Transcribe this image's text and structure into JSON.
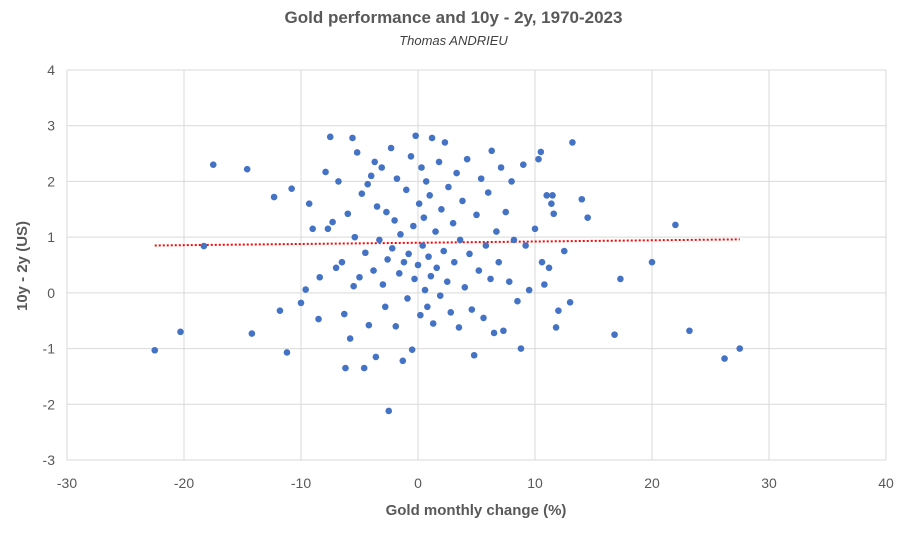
{
  "chart_data": {
    "type": "scatter",
    "title": "Gold performance and 10y - 2y, 1970-2023",
    "subtitle": "Thomas ANDRIEU",
    "xlabel": "Gold monthly change (%)",
    "ylabel": "10y - 2y  (US)",
    "xlim": [
      -30,
      40
    ],
    "ylim": [
      -3,
      4
    ],
    "x_ticks": [
      -30,
      -20,
      -10,
      0,
      10,
      20,
      30,
      40
    ],
    "y_ticks": [
      -3,
      -2,
      -1,
      0,
      1,
      2,
      3,
      4
    ],
    "grid": true,
    "legend": "none",
    "colors": {
      "points": "#4472C4",
      "trendline": "#FF0000",
      "grid": "#D9D9D9",
      "text": "#595959"
    },
    "trendline": {
      "style": "dotted",
      "x": [
        -22.5,
        27.5
      ],
      "y": [
        0.85,
        0.96
      ]
    },
    "series": [
      {
        "values": [
          [
            -22.5,
            -1.03
          ],
          [
            -20.3,
            -0.7
          ],
          [
            -18.3,
            0.84
          ],
          [
            -17.5,
            2.3
          ],
          [
            -14.6,
            2.22
          ],
          [
            -14.2,
            -0.73
          ],
          [
            -12.3,
            1.72
          ],
          [
            -11.8,
            -0.32
          ],
          [
            -11.2,
            -1.07
          ],
          [
            -10.8,
            1.87
          ],
          [
            -10.0,
            -0.18
          ],
          [
            -9.6,
            0.06
          ],
          [
            -9.3,
            1.6
          ],
          [
            -9.0,
            1.15
          ],
          [
            -8.5,
            -0.47
          ],
          [
            -8.4,
            0.28
          ],
          [
            -7.9,
            2.17
          ],
          [
            -7.7,
            1.15
          ],
          [
            -7.5,
            2.8
          ],
          [
            -7.3,
            1.27
          ],
          [
            -7.0,
            0.45
          ],
          [
            -6.8,
            2.0
          ],
          [
            -6.5,
            0.55
          ],
          [
            -6.3,
            -0.38
          ],
          [
            -6.2,
            -1.35
          ],
          [
            -6.0,
            1.42
          ],
          [
            -5.8,
            -0.82
          ],
          [
            -5.6,
            2.78
          ],
          [
            -5.5,
            0.12
          ],
          [
            -5.4,
            1.0
          ],
          [
            -5.2,
            2.52
          ],
          [
            -5.0,
            0.28
          ],
          [
            -4.8,
            1.78
          ],
          [
            -4.6,
            -1.35
          ],
          [
            -4.5,
            0.72
          ],
          [
            -4.3,
            1.95
          ],
          [
            -4.2,
            -0.58
          ],
          [
            -4.0,
            2.1
          ],
          [
            -3.8,
            0.4
          ],
          [
            -3.7,
            2.35
          ],
          [
            -3.6,
            -1.15
          ],
          [
            -3.5,
            1.55
          ],
          [
            -3.3,
            0.95
          ],
          [
            -3.1,
            2.25
          ],
          [
            -3.0,
            0.15
          ],
          [
            -2.8,
            -0.25
          ],
          [
            -2.7,
            1.45
          ],
          [
            -2.6,
            0.6
          ],
          [
            -2.5,
            -2.12
          ],
          [
            -2.3,
            2.6
          ],
          [
            -2.2,
            0.8
          ],
          [
            -2.0,
            1.3
          ],
          [
            -1.9,
            -0.6
          ],
          [
            -1.8,
            2.05
          ],
          [
            -1.6,
            0.35
          ],
          [
            -1.5,
            1.05
          ],
          [
            -1.3,
            -1.22
          ],
          [
            -1.2,
            0.55
          ],
          [
            -1.0,
            1.85
          ],
          [
            -0.9,
            -0.1
          ],
          [
            -0.8,
            0.7
          ],
          [
            -0.6,
            2.45
          ],
          [
            -0.5,
            -1.02
          ],
          [
            -0.4,
            1.2
          ],
          [
            -0.3,
            0.25
          ],
          [
            -0.2,
            2.82
          ],
          [
            0.0,
            0.5
          ],
          [
            0.1,
            1.6
          ],
          [
            0.2,
            -0.4
          ],
          [
            0.3,
            2.25
          ],
          [
            0.4,
            0.85
          ],
          [
            0.5,
            1.35
          ],
          [
            0.6,
            0.05
          ],
          [
            0.7,
            2.0
          ],
          [
            0.8,
            -0.25
          ],
          [
            0.9,
            0.65
          ],
          [
            1.0,
            1.75
          ],
          [
            1.1,
            0.3
          ],
          [
            1.2,
            2.78
          ],
          [
            1.3,
            -0.55
          ],
          [
            1.5,
            1.1
          ],
          [
            1.6,
            0.45
          ],
          [
            1.8,
            2.35
          ],
          [
            1.9,
            -0.05
          ],
          [
            2.0,
            1.5
          ],
          [
            2.2,
            0.75
          ],
          [
            2.3,
            2.7
          ],
          [
            2.5,
            0.2
          ],
          [
            2.6,
            1.9
          ],
          [
            2.8,
            -0.35
          ],
          [
            3.0,
            1.25
          ],
          [
            3.1,
            0.55
          ],
          [
            3.3,
            2.15
          ],
          [
            3.5,
            -0.62
          ],
          [
            3.6,
            0.95
          ],
          [
            3.8,
            1.65
          ],
          [
            4.0,
            0.1
          ],
          [
            4.2,
            2.4
          ],
          [
            4.4,
            0.7
          ],
          [
            4.6,
            -0.3
          ],
          [
            4.8,
            -1.12
          ],
          [
            5.0,
            1.4
          ],
          [
            5.2,
            0.4
          ],
          [
            5.4,
            2.05
          ],
          [
            5.6,
            -0.45
          ],
          [
            5.8,
            0.85
          ],
          [
            6.0,
            1.8
          ],
          [
            6.2,
            0.25
          ],
          [
            6.3,
            2.55
          ],
          [
            6.5,
            -0.72
          ],
          [
            6.7,
            1.1
          ],
          [
            6.9,
            0.55
          ],
          [
            7.1,
            2.25
          ],
          [
            7.3,
            -0.68
          ],
          [
            7.5,
            1.45
          ],
          [
            7.8,
            0.2
          ],
          [
            8.0,
            2.0
          ],
          [
            8.2,
            0.95
          ],
          [
            8.5,
            -0.15
          ],
          [
            8.8,
            -1.0
          ],
          [
            9.0,
            2.3
          ],
          [
            9.2,
            0.85
          ],
          [
            9.5,
            0.05
          ],
          [
            10.0,
            1.15
          ],
          [
            10.3,
            2.4
          ],
          [
            10.5,
            2.53
          ],
          [
            10.6,
            0.55
          ],
          [
            10.8,
            0.15
          ],
          [
            11.0,
            1.75
          ],
          [
            11.2,
            0.45
          ],
          [
            11.4,
            1.6
          ],
          [
            11.5,
            1.75
          ],
          [
            11.6,
            1.42
          ],
          [
            11.8,
            -0.62
          ],
          [
            12.0,
            -0.32
          ],
          [
            12.5,
            0.75
          ],
          [
            13.0,
            -0.17
          ],
          [
            13.2,
            2.7
          ],
          [
            14.0,
            1.68
          ],
          [
            14.5,
            1.35
          ],
          [
            16.8,
            -0.75
          ],
          [
            17.3,
            0.25
          ],
          [
            20.0,
            0.55
          ],
          [
            22.0,
            1.22
          ],
          [
            23.2,
            -0.68
          ],
          [
            26.2,
            -1.18
          ],
          [
            27.5,
            -1.0
          ]
        ]
      }
    ]
  }
}
